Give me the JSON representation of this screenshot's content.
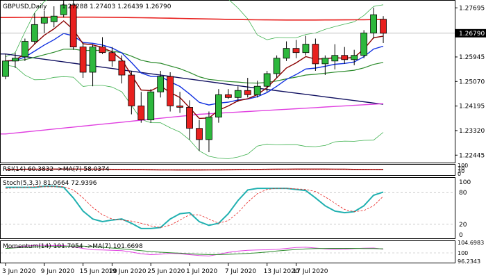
{
  "header": {
    "symbol": "GBPUSD,Daily",
    "ohlc": "1.27288 1.27403 1.26439 1.26790"
  },
  "main": {
    "price_ticks": [
      "1.27695",
      "1.25945",
      "1.25070",
      "1.24195",
      "1.23320",
      "1.22445"
    ],
    "current_price": "1.26790"
  },
  "rsi": {
    "label": "RSI(14) 60.3832 ->MA(7) 58.0374",
    "ticks": [
      "100",
      "70",
      "30",
      "0"
    ]
  },
  "stoch": {
    "label": "Stoch(5,3,3) 81.0664 72.9396",
    "ticks": [
      "100",
      "80",
      "20",
      "0"
    ]
  },
  "momentum": {
    "label": "Momentum(14) 101.7054 ->MA(7) 101.6698",
    "ticks": [
      "104.6983",
      "100",
      "96.2343"
    ]
  },
  "x_axis": {
    "labels": [
      "3 Jun 2020",
      "9 Jun 2020",
      "15 Jun 2020",
      "19 Jun 2020",
      "25 Jun 2020",
      "1 Jul 2020",
      "7 Jul 2020",
      "13 Jul 2020",
      "17 Jul 2020"
    ]
  },
  "colors": {
    "bull": "#2db83d",
    "bear": "#e8201e",
    "ma_red": "#e8201e",
    "ma_navy": "#101060",
    "ma_blue": "#1030e0",
    "ma_darkred": "#8b0000",
    "ma_green": "#2a8a2a",
    "ma_pink": "#e040e0",
    "bollinger": "#3cb04c",
    "stoch_main": "#20b0b0",
    "stoch_signal": "#e8201e"
  },
  "chart_data": {
    "type": "candlestick",
    "ylim": [
      1.2218,
      1.2795
    ],
    "candles": [
      {
        "o": 1.2525,
        "h": 1.2605,
        "l": 1.2515,
        "c": 1.258
      },
      {
        "o": 1.258,
        "h": 1.261,
        "l": 1.2555,
        "c": 1.259
      },
      {
        "o": 1.2595,
        "h": 1.266,
        "l": 1.258,
        "c": 1.265
      },
      {
        "o": 1.265,
        "h": 1.275,
        "l": 1.264,
        "c": 1.271
      },
      {
        "o": 1.2715,
        "h": 1.276,
        "l": 1.268,
        "c": 1.2735
      },
      {
        "o": 1.272,
        "h": 1.2775,
        "l": 1.27,
        "c": 1.274
      },
      {
        "o": 1.2745,
        "h": 1.281,
        "l": 1.2735,
        "c": 1.278
      },
      {
        "o": 1.278,
        "h": 1.281,
        "l": 1.262,
        "c": 1.263
      },
      {
        "o": 1.263,
        "h": 1.2645,
        "l": 1.252,
        "c": 1.254
      },
      {
        "o": 1.254,
        "h": 1.264,
        "l": 1.249,
        "c": 1.263
      },
      {
        "o": 1.263,
        "h": 1.2665,
        "l": 1.2605,
        "c": 1.261
      },
      {
        "o": 1.261,
        "h": 1.263,
        "l": 1.256,
        "c": 1.258
      },
      {
        "o": 1.258,
        "h": 1.26,
        "l": 1.25,
        "c": 1.253
      },
      {
        "o": 1.253,
        "h": 1.2545,
        "l": 1.239,
        "c": 1.242
      },
      {
        "o": 1.242,
        "h": 1.247,
        "l": 1.236,
        "c": 1.237
      },
      {
        "o": 1.237,
        "h": 1.248,
        "l": 1.236,
        "c": 1.247
      },
      {
        "o": 1.247,
        "h": 1.2545,
        "l": 1.245,
        "c": 1.2525
      },
      {
        "o": 1.2525,
        "h": 1.254,
        "l": 1.24,
        "c": 1.242
      },
      {
        "o": 1.242,
        "h": 1.247,
        "l": 1.2395,
        "c": 1.2415
      },
      {
        "o": 1.2415,
        "h": 1.244,
        "l": 1.23,
        "c": 1.234
      },
      {
        "o": 1.234,
        "h": 1.237,
        "l": 1.226,
        "c": 1.23
      },
      {
        "o": 1.23,
        "h": 1.24,
        "l": 1.2255,
        "c": 1.238
      },
      {
        "o": 1.238,
        "h": 1.248,
        "l": 1.236,
        "c": 1.246
      },
      {
        "o": 1.246,
        "h": 1.248,
        "l": 1.2445,
        "c": 1.245
      },
      {
        "o": 1.245,
        "h": 1.249,
        "l": 1.2435,
        "c": 1.2475
      },
      {
        "o": 1.2475,
        "h": 1.252,
        "l": 1.245,
        "c": 1.246
      },
      {
        "o": 1.246,
        "h": 1.251,
        "l": 1.245,
        "c": 1.249
      },
      {
        "o": 1.249,
        "h": 1.2545,
        "l": 1.247,
        "c": 1.2535
      },
      {
        "o": 1.2535,
        "h": 1.26,
        "l": 1.252,
        "c": 1.259
      },
      {
        "o": 1.259,
        "h": 1.265,
        "l": 1.258,
        "c": 1.2625
      },
      {
        "o": 1.2625,
        "h": 1.2655,
        "l": 1.259,
        "c": 1.261
      },
      {
        "o": 1.261,
        "h": 1.267,
        "l": 1.26,
        "c": 1.264
      },
      {
        "o": 1.264,
        "h": 1.266,
        "l": 1.2545,
        "c": 1.257
      },
      {
        "o": 1.257,
        "h": 1.26,
        "l": 1.253,
        "c": 1.259
      },
      {
        "o": 1.258,
        "h": 1.264,
        "l": 1.255,
        "c": 1.26
      },
      {
        "o": 1.26,
        "h": 1.263,
        "l": 1.257,
        "c": 1.2585
      },
      {
        "o": 1.2585,
        "h": 1.262,
        "l": 1.2565,
        "c": 1.26
      },
      {
        "o": 1.26,
        "h": 1.269,
        "l": 1.259,
        "c": 1.268
      },
      {
        "o": 1.268,
        "h": 1.277,
        "l": 1.266,
        "c": 1.2745
      },
      {
        "o": 1.2729,
        "h": 1.274,
        "l": 1.2644,
        "c": 1.2679
      }
    ],
    "x_label_candle_index": [
      0,
      4,
      8,
      11,
      15,
      19,
      23,
      27,
      30
    ],
    "hline": 1.2679
  }
}
